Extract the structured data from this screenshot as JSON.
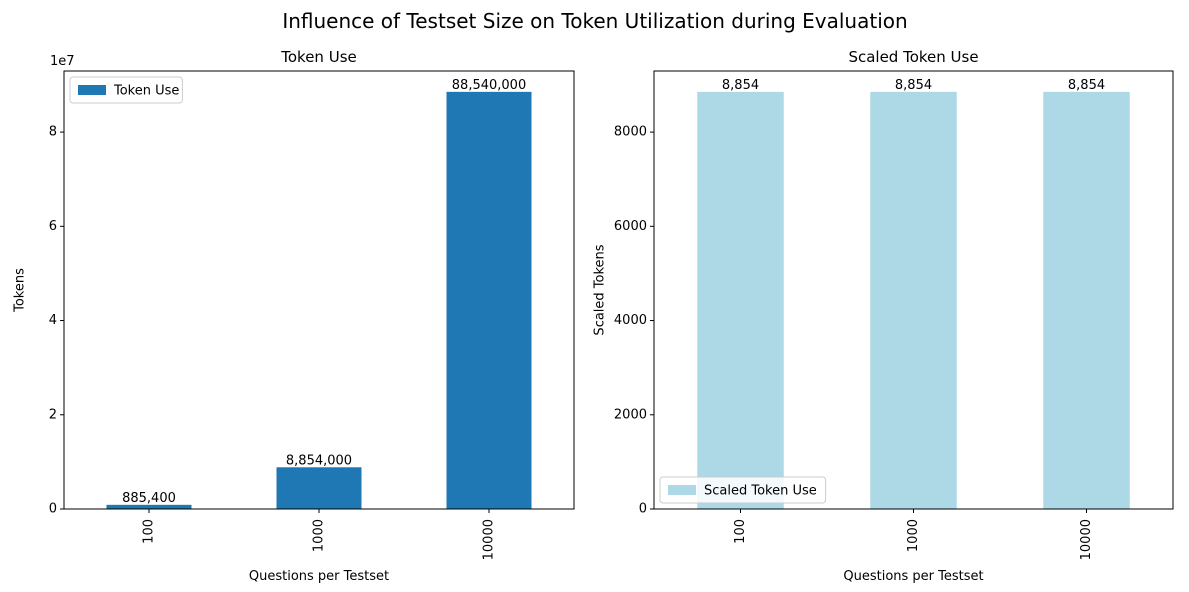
{
  "figure": {
    "suptitle": "Influence of Testset Size on Token Utilization during Evaluation"
  },
  "chart_data": [
    {
      "type": "bar",
      "title": "Token Use",
      "xlabel": "Questions per Testset",
      "ylabel": "Tokens",
      "scale_note": "1e7",
      "categories": [
        "100",
        "1000",
        "10000"
      ],
      "series": [
        {
          "name": "Token Use",
          "color": "#1f77b4",
          "values": [
            885400,
            8854000,
            88540000
          ]
        }
      ],
      "data_labels": [
        "885,400",
        "8,854,000",
        "88,540,000"
      ],
      "ylim": [
        0,
        92967000
      ],
      "yticks": [
        0,
        20000000,
        40000000,
        60000000,
        80000000
      ],
      "ytick_labels": [
        "0",
        "2",
        "4",
        "6",
        "8"
      ],
      "legend": "upper-left",
      "grid": false
    },
    {
      "type": "bar",
      "title": "Scaled Token Use",
      "xlabel": "Questions per Testset",
      "ylabel": "Scaled Tokens",
      "categories": [
        "100",
        "1000",
        "10000"
      ],
      "series": [
        {
          "name": "Scaled Token Use",
          "color": "#add8e6",
          "values": [
            8854,
            8854,
            8854
          ]
        }
      ],
      "data_labels": [
        "8,854",
        "8,854",
        "8,854"
      ],
      "ylim": [
        0,
        9296.7
      ],
      "yticks": [
        0,
        2000,
        4000,
        6000,
        8000
      ],
      "ytick_labels": [
        "0",
        "2000",
        "4000",
        "6000",
        "8000"
      ],
      "legend": "lower-left",
      "grid": false
    }
  ]
}
